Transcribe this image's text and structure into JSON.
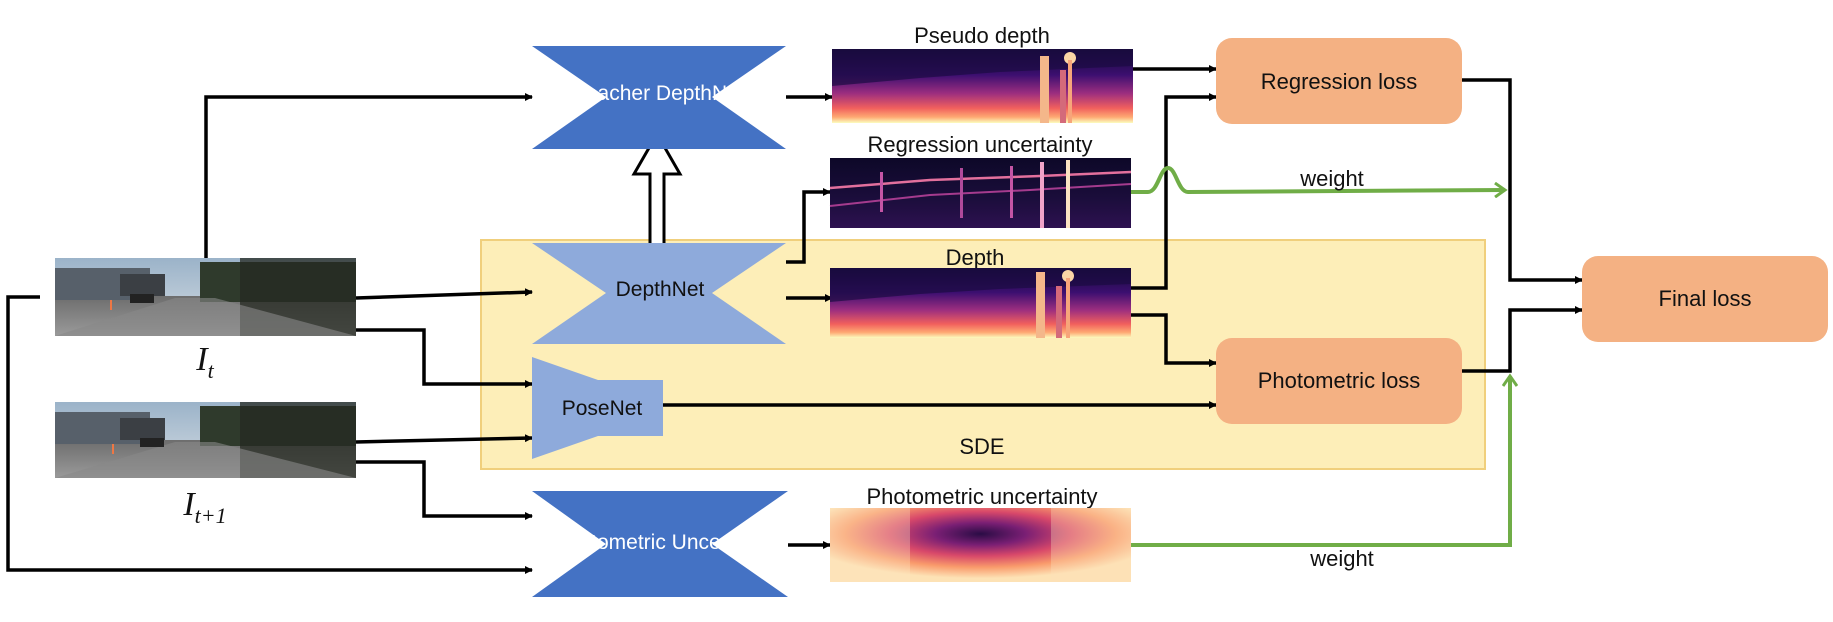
{
  "colors": {
    "teacher_net": "#4472c4",
    "student_net": "#8eaadb",
    "loss_box": "#f4b183",
    "sde_region": "#fdeeb8",
    "sde_border": "#f0cf7c",
    "arrow": "#000000",
    "weight_arrow": "#70ad47"
  },
  "inputs": {
    "frame_t": {
      "symbol": "I",
      "subscript": "t"
    },
    "frame_t1": {
      "symbol": "I",
      "subscript": "t+1"
    }
  },
  "networks": {
    "teacher": "Teacher DepthNet",
    "depth": "DepthNet",
    "pose": "PoseNet",
    "uncert": "Photometric UncertNet"
  },
  "maps": {
    "pseudo_depth": "Pseudo depth",
    "regression_uncertainty": "Regression uncertainty",
    "depth": "Depth",
    "photometric_uncertainty": "Photometric uncertainty"
  },
  "losses": {
    "regression": "Regression loss",
    "photometric": "Photometric loss",
    "final": "Final loss"
  },
  "region_label": "SDE",
  "weight_label_top": "weight",
  "weight_label_bottom": "weight"
}
